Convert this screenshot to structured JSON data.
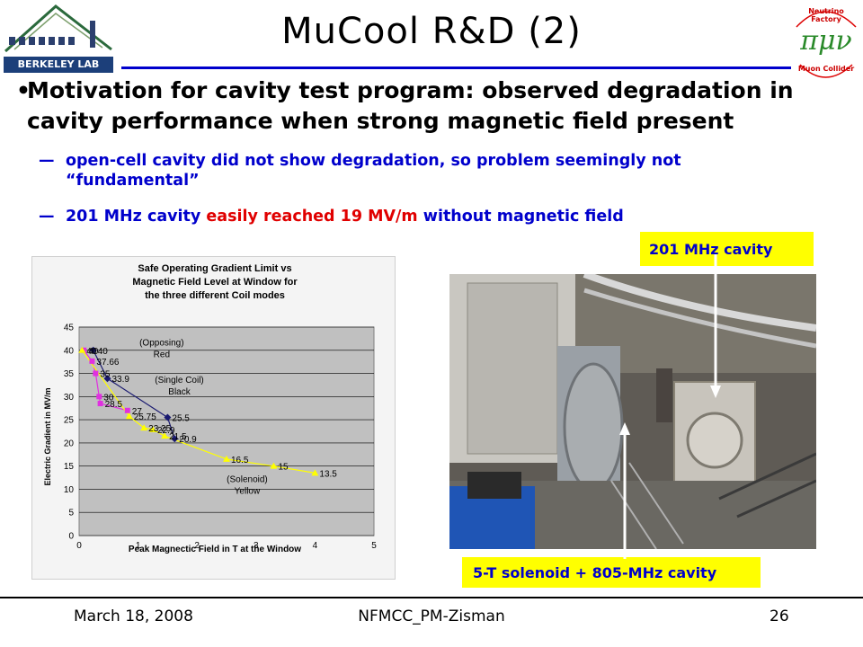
{
  "title": "MuCool R&D (2)",
  "logos": {
    "left_text": "BERKELEY LAB",
    "right_top": "Neutrino Factory",
    "right_bottom": "Muon Collider",
    "right_symbols": "πμν"
  },
  "bullet": {
    "marker": "•",
    "text": "Motivation for cavity test program: observed degradation in cavity performance when strong magnetic field present"
  },
  "subbullets": [
    {
      "marker": "—",
      "text": "open-cell cavity did not show degradation, so problem seemingly not “fundamental”"
    },
    {
      "marker": "—",
      "part1": "201 MHz cavity ",
      "part2": "easily reached 19 MV/m",
      "part3": " without magnetic field"
    }
  ],
  "callouts": {
    "top": "201 MHz cavity",
    "bottom": "5-T solenoid + 805-MHz cavity"
  },
  "chart_data": {
    "type": "scatter",
    "title": "Safe Operating Gradient Limit vs  Magnetic Field Level at Window for the three different Coil modes",
    "xlabel": "Peak  Magnectic Field in T at the Window",
    "ylabel": "Electric Gradient in MV/m",
    "xlim": [
      0,
      5
    ],
    "ylim": [
      0,
      45
    ],
    "xticks": [
      0,
      1,
      2,
      3,
      4,
      5
    ],
    "yticks": [
      0,
      5,
      10,
      15,
      20,
      25,
      30,
      35,
      40,
      45
    ],
    "grid": true,
    "annotations": [
      {
        "text": "(Opposing)",
        "x": 1.4,
        "y": 41
      },
      {
        "text": "Red",
        "x": 1.4,
        "y": 38.5
      },
      {
        "text": "(Single Coil)",
        "x": 1.7,
        "y": 33
      },
      {
        "text": "Black",
        "x": 1.7,
        "y": 30.5
      },
      {
        "text": "(Solenoid)",
        "x": 2.85,
        "y": 11.5
      },
      {
        "text": "Yellow",
        "x": 2.85,
        "y": 9
      }
    ],
    "series": [
      {
        "color": "#e030e0",
        "marker": "square",
        "points": [
          {
            "x": 0.08,
            "y": 40,
            "label": "40"
          },
          {
            "x": 0.22,
            "y": 37.66,
            "label": "37.66"
          },
          {
            "x": 0.28,
            "y": 35,
            "label": "35"
          },
          {
            "x": 0.34,
            "y": 30,
            "label": "30"
          },
          {
            "x": 0.36,
            "y": 28.5,
            "label": "28.5"
          },
          {
            "x": 0.82,
            "y": 27,
            "label": "27"
          }
        ]
      },
      {
        "color": "#1a1a70",
        "marker": "diamond",
        "points": [
          {
            "x": 0.24,
            "y": 40,
            "label": "40"
          },
          {
            "x": 0.48,
            "y": 33.9,
            "label": "33.9"
          },
          {
            "x": 1.5,
            "y": 25.5,
            "label": "25.5"
          },
          {
            "x": 1.62,
            "y": 20.9,
            "label": "20.9"
          }
        ]
      },
      {
        "color": "#ffff00",
        "marker": "triangle",
        "points": [
          {
            "x": 0.05,
            "y": 40,
            "label": "40"
          },
          {
            "x": 0.85,
            "y": 25.75,
            "label": "25.75"
          },
          {
            "x": 1.1,
            "y": 23.25,
            "label": "23.25"
          },
          {
            "x": 1.25,
            "y": 22.9,
            "label": "22.9"
          },
          {
            "x": 1.45,
            "y": 21.5,
            "label": "21.5"
          },
          {
            "x": 2.5,
            "y": 16.5,
            "label": "16.5"
          },
          {
            "x": 3.3,
            "y": 15,
            "label": "15"
          },
          {
            "x": 4.0,
            "y": 13.5,
            "label": "13.5"
          }
        ]
      }
    ]
  },
  "footer": {
    "date": "March 18, 2008",
    "center": "NFMCC_PM-Zisman",
    "page": "26"
  },
  "colors": {
    "accent": "#0000cc",
    "highlight": "#ffff00",
    "emphasis": "#e00000",
    "plot_area": "#c0c0c0"
  }
}
